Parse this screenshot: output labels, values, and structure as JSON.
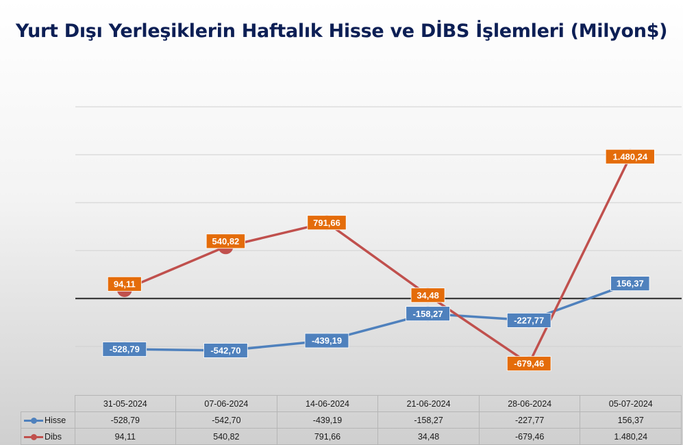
{
  "chart_data": {
    "type": "line",
    "title": "Yurt Dışı Yerleşiklerin Haftalık Hisse ve DİBS İşlemleri (Milyon$)",
    "categories": [
      "31-05-2024",
      "07-06-2024",
      "14-06-2024",
      "21-06-2024",
      "28-06-2024",
      "05-07-2024"
    ],
    "series": [
      {
        "name": "Hisse",
        "color": "#4f81bd",
        "values": [
          -528.79,
          -542.7,
          -439.19,
          -158.27,
          -227.77,
          156.37
        ],
        "labels": [
          "-528,79",
          "-542,70",
          "-439,19",
          "-158,27",
          "-227,77",
          "156,37"
        ]
      },
      {
        "name": "Dibs",
        "color": "#c0504d",
        "label_color": "#e46c0a",
        "values": [
          94.11,
          540.82,
          791.66,
          34.48,
          -679.46,
          1480.24
        ],
        "labels": [
          "94,11",
          "540,82",
          "791,66",
          "34,48",
          "-679,46",
          "1.480,24"
        ]
      }
    ],
    "ylim": [
      -1000,
      2000
    ],
    "ytick_step": 500,
    "grid": true,
    "legend": "data-table"
  }
}
